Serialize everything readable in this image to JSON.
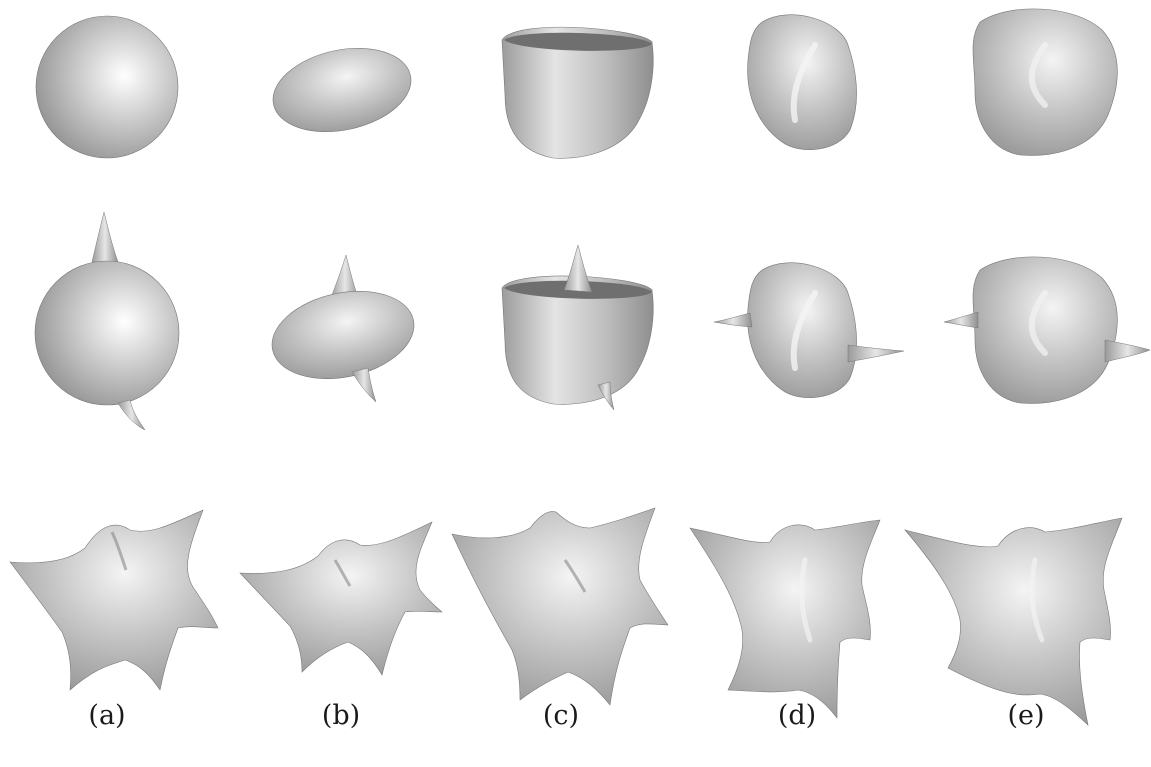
{
  "figure": {
    "rows": [
      "plain",
      "two-spikes",
      "many-spikes"
    ],
    "columns": [
      {
        "label": "(a)",
        "shape": "sphere"
      },
      {
        "label": "(b)",
        "shape": "flattened-ellipsoid"
      },
      {
        "label": "(c)",
        "shape": "cup-like-body"
      },
      {
        "label": "(d)",
        "shape": "twisted-capsule"
      },
      {
        "label": "(e)",
        "shape": "twisted-lobed-body"
      }
    ]
  },
  "colors": {
    "surface_highlight": "#ffffff",
    "surface_mid": "#bdbdbd",
    "surface_dark": "#7c7c7c",
    "outline": "#6f6f6f"
  }
}
